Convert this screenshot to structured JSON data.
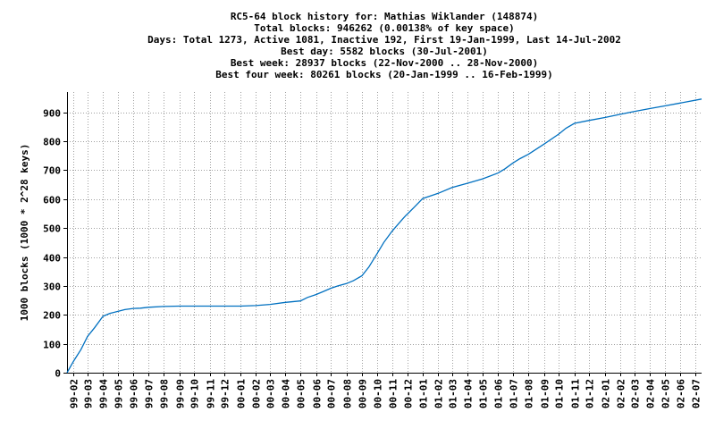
{
  "chart_data": {
    "type": "line",
    "title_lines": [
      "RC5-64 block history for: Mathias Wiklander (148874)",
      "Total blocks: 946262 (0.00138% of key space)",
      "Days: Total 1273,  Active 1081, Inactive 192, First 19-Jan-1999, Last 14-Jul-2002",
      "Best day: 5582 blocks (30-Jul-2001)",
      "Best week: 28937 blocks (22-Nov-2000 .. 28-Nov-2000)",
      "Best four week: 80261 blocks (20-Jan-1999 .. 16-Feb-1999)"
    ],
    "ylabel": "1000 blocks (1000 * 2^28 keys)",
    "xlabel": "",
    "ylim": [
      0,
      970
    ],
    "yticks": [
      0,
      100,
      200,
      300,
      400,
      500,
      600,
      700,
      800,
      900
    ],
    "xlim": [
      "1999-01-19",
      "2002-07-14"
    ],
    "xtick_labels": [
      "99-02",
      "99-03",
      "99-04",
      "99-05",
      "99-06",
      "99-07",
      "99-08",
      "99-09",
      "99-10",
      "99-11",
      "99-12",
      "00-01",
      "00-02",
      "00-03",
      "00-04",
      "00-05",
      "00-06",
      "00-07",
      "00-08",
      "00-09",
      "00-10",
      "00-11",
      "00-12",
      "01-01",
      "01-02",
      "01-03",
      "01-04",
      "01-05",
      "01-06",
      "01-07",
      "01-08",
      "01-09",
      "01-10",
      "01-11",
      "01-12",
      "02-01",
      "02-02",
      "02-03",
      "02-04",
      "02-05",
      "02-06",
      "02-07"
    ],
    "grid": true,
    "color": "#0070c0",
    "series": [
      {
        "x": [
          "1999-01-19",
          "1999-02-01",
          "1999-02-16",
          "1999-03-01",
          "1999-03-15",
          "1999-04-01",
          "1999-04-15",
          "1999-05-01",
          "1999-05-15",
          "1999-06-01",
          "1999-06-15",
          "1999-07-01",
          "1999-08-01",
          "1999-09-01",
          "1999-10-01",
          "1999-11-01",
          "1999-12-01",
          "2000-01-01",
          "2000-02-01",
          "2000-03-01",
          "2000-04-01",
          "2000-05-01",
          "2000-05-15",
          "2000-06-01",
          "2000-06-15",
          "2000-07-01",
          "2000-07-15",
          "2000-08-01",
          "2000-08-15",
          "2000-09-01",
          "2000-09-15",
          "2000-10-01",
          "2000-10-15",
          "2000-11-01",
          "2000-11-22",
          "2000-11-28",
          "2000-12-01",
          "2000-12-15",
          "2001-01-01",
          "2001-01-15",
          "2001-02-01",
          "2001-03-01",
          "2001-04-01",
          "2001-05-01",
          "2001-06-01",
          "2001-06-15",
          "2001-07-01",
          "2001-07-15",
          "2001-08-01",
          "2001-09-01",
          "2001-10-01",
          "2001-10-15",
          "2001-11-01",
          "2001-12-01",
          "2002-01-01",
          "2002-02-01",
          "2002-03-01",
          "2002-04-01",
          "2002-05-01",
          "2002-06-01",
          "2002-07-14"
        ],
        "y": [
          0,
          40,
          80,
          125,
          155,
          195,
          205,
          212,
          218,
          222,
          223,
          226,
          229,
          230,
          230,
          230,
          230,
          230,
          232,
          236,
          243,
          248,
          260,
          270,
          280,
          292,
          300,
          308,
          318,
          335,
          365,
          410,
          450,
          490,
          532,
          543,
          548,
          572,
          602,
          610,
          620,
          640,
          655,
          670,
          690,
          705,
          725,
          740,
          755,
          790,
          825,
          845,
          862,
          872,
          882,
          893,
          903,
          913,
          922,
          932,
          946
        ]
      }
    ]
  }
}
